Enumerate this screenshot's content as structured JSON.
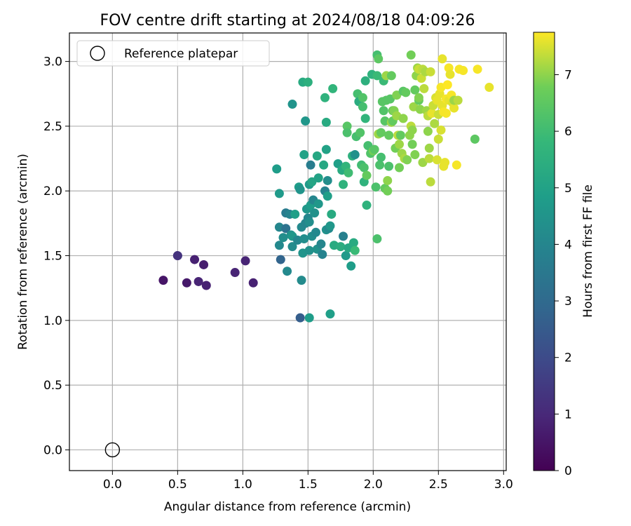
{
  "chart_data": {
    "type": "scatter",
    "title": "FOV centre drift starting at 2024/08/18 04:09:26",
    "xlabel": "Angular distance from reference (arcmin)",
    "ylabel": "Rotation from reference (arcmin)",
    "xlim": [
      -0.33,
      3.02
    ],
    "ylim": [
      -0.16,
      3.22
    ],
    "xticks": [
      "0.0",
      "0.5",
      "1.0",
      "1.5",
      "2.0",
      "2.5",
      "3.0"
    ],
    "yticks": [
      "0.0",
      "0.5",
      "1.0",
      "1.5",
      "2.0",
      "2.5",
      "3.0"
    ],
    "grid": true,
    "legend_position": "top-left",
    "legend": [
      {
        "label": "Reference platepar",
        "marker": "open-circle"
      }
    ],
    "reference_point": [
      0.0,
      0.0
    ],
    "colormap": "viridis",
    "colorbar": {
      "label": "Hours from first FF file",
      "range": [
        0,
        7.75
      ],
      "ticks": [
        "0",
        "1",
        "2",
        "3",
        "4",
        "5",
        "6",
        "7"
      ]
    },
    "points": [
      [
        0.39,
        1.31,
        0.5
      ],
      [
        0.5,
        1.5,
        1.6
      ],
      [
        0.5,
        1.5,
        1.3
      ],
      [
        0.57,
        1.29,
        0.6
      ],
      [
        0.63,
        1.47,
        0.8
      ],
      [
        0.66,
        1.3,
        0.9
      ],
      [
        0.7,
        1.43,
        0.7
      ],
      [
        0.72,
        1.27,
        0.8
      ],
      [
        0.94,
        1.37,
        0.9
      ],
      [
        1.02,
        1.46,
        0.9
      ],
      [
        1.08,
        1.29,
        0.8
      ],
      [
        1.44,
        1.02,
        2.6
      ],
      [
        1.51,
        1.02,
        4.8
      ],
      [
        1.67,
        1.05,
        4.9
      ],
      [
        1.45,
        1.31,
        4.2
      ],
      [
        1.34,
        1.38,
        4.1
      ],
      [
        1.29,
        1.47,
        2.8
      ],
      [
        1.28,
        1.58,
        4.1
      ],
      [
        1.28,
        1.72,
        4.0
      ],
      [
        1.31,
        1.64,
        4.3
      ],
      [
        1.33,
        1.71,
        3.3
      ],
      [
        1.33,
        1.83,
        3.6
      ],
      [
        1.36,
        1.82,
        3.9
      ],
      [
        1.37,
        1.66,
        4.4
      ],
      [
        1.38,
        1.65,
        4.6
      ],
      [
        1.38,
        1.57,
        4.2
      ],
      [
        1.4,
        1.82,
        4.9
      ],
      [
        1.42,
        1.62,
        4.0
      ],
      [
        1.45,
        1.72,
        4.1
      ],
      [
        1.46,
        1.52,
        4.5
      ],
      [
        1.47,
        1.63,
        4.3
      ],
      [
        1.48,
        1.75,
        4.0
      ],
      [
        1.49,
        1.86,
        4.6
      ],
      [
        1.5,
        1.79,
        4.0
      ],
      [
        1.51,
        1.76,
        4.3
      ],
      [
        1.51,
        1.54,
        4.4
      ],
      [
        1.52,
        1.89,
        4.8
      ],
      [
        1.53,
        1.65,
        4.3
      ],
      [
        1.54,
        1.93,
        4.0
      ],
      [
        1.55,
        1.83,
        4.4
      ],
      [
        1.56,
        1.68,
        4.1
      ],
      [
        1.57,
        1.55,
        4.4
      ],
      [
        1.58,
        1.9,
        4.6
      ],
      [
        1.6,
        1.59,
        4.0
      ],
      [
        1.61,
        1.51,
        3.9
      ],
      [
        1.63,
        2.0,
        3.9
      ],
      [
        1.64,
        1.7,
        4.4
      ],
      [
        1.65,
        1.96,
        4.9
      ],
      [
        1.66,
        1.71,
        4.1
      ],
      [
        1.67,
        1.73,
        4.6
      ],
      [
        1.68,
        1.82,
        5.3
      ],
      [
        1.7,
        1.58,
        5.3
      ],
      [
        1.75,
        1.57,
        5.4
      ],
      [
        1.77,
        1.65,
        3.8
      ],
      [
        1.79,
        1.5,
        4.7
      ],
      [
        1.81,
        1.56,
        5.2
      ],
      [
        1.83,
        1.42,
        4.8
      ],
      [
        1.85,
        1.6,
        5.3
      ],
      [
        1.86,
        1.54,
        5.9
      ],
      [
        1.26,
        2.17,
        4.8
      ],
      [
        1.28,
        1.98,
        4.7
      ],
      [
        1.38,
        2.67,
        4.5
      ],
      [
        1.43,
        2.03,
        4.8
      ],
      [
        1.44,
        2.01,
        4.5
      ],
      [
        1.46,
        2.84,
        5.3
      ],
      [
        1.47,
        2.28,
        5.0
      ],
      [
        1.48,
        2.54,
        4.6
      ],
      [
        1.5,
        2.84,
        5.5
      ],
      [
        1.51,
        2.05,
        4.7
      ],
      [
        1.52,
        2.2,
        3.7
      ],
      [
        1.53,
        2.07,
        5.1
      ],
      [
        1.57,
        2.27,
        5.2
      ],
      [
        1.58,
        2.1,
        5.0
      ],
      [
        1.62,
        2.2,
        5.2
      ],
      [
        1.63,
        2.72,
        5.6
      ],
      [
        1.64,
        2.32,
        5.0
      ],
      [
        1.64,
        2.53,
        5.3
      ],
      [
        1.65,
        2.08,
        4.3
      ],
      [
        1.69,
        2.79,
        5.7
      ],
      [
        1.73,
        2.21,
        4.9
      ],
      [
        1.76,
        2.16,
        5.3
      ],
      [
        1.77,
        2.05,
        5.6
      ],
      [
        1.79,
        2.19,
        5.7
      ],
      [
        1.8,
        2.5,
        6.4
      ],
      [
        1.8,
        2.45,
        6.2
      ],
      [
        1.81,
        2.14,
        6.0
      ],
      [
        1.84,
        2.27,
        5.5
      ],
      [
        1.86,
        2.28,
        4.4
      ],
      [
        1.87,
        2.42,
        6.1
      ],
      [
        1.88,
        2.75,
        6.1
      ],
      [
        1.89,
        2.69,
        5.4
      ],
      [
        1.9,
        2.45,
        6.3
      ],
      [
        1.91,
        2.2,
        6.0
      ],
      [
        1.92,
        2.72,
        6.3
      ],
      [
        1.92,
        2.65,
        6.1
      ],
      [
        1.93,
        2.18,
        6.2
      ],
      [
        1.93,
        2.07,
        5.6
      ],
      [
        1.94,
        2.85,
        5.5
      ],
      [
        1.94,
        2.56,
        5.7
      ],
      [
        1.95,
        2.12,
        6.6
      ],
      [
        1.95,
        1.89,
        5.6
      ],
      [
        1.96,
        2.35,
        6.1
      ],
      [
        1.98,
        2.29,
        6.3
      ],
      [
        1.99,
        2.9,
        5.6
      ],
      [
        2.0,
        2.31,
        6.8
      ],
      [
        2.01,
        2.32,
        6.4
      ],
      [
        2.02,
        2.03,
        6.2
      ],
      [
        2.03,
        3.05,
        6.1
      ],
      [
        2.03,
        2.89,
        5.9
      ],
      [
        2.03,
        1.63,
        6.2
      ],
      [
        2.04,
        2.44,
        7.1
      ],
      [
        2.04,
        3.02,
        6.5
      ],
      [
        2.05,
        2.2,
        6.2
      ],
      [
        2.06,
        2.26,
        6.1
      ],
      [
        2.06,
        2.45,
        6.6
      ],
      [
        2.07,
        2.69,
        6.4
      ],
      [
        2.08,
        2.85,
        5.9
      ],
      [
        2.08,
        2.62,
        6.3
      ],
      [
        2.09,
        2.02,
        6.6
      ],
      [
        2.09,
        2.54,
        6.4
      ],
      [
        2.1,
        2.89,
        7.1
      ],
      [
        2.1,
        2.7,
        6.4
      ],
      [
        2.11,
        2.08,
        7.0
      ],
      [
        2.11,
        2.0,
        6.8
      ],
      [
        2.12,
        2.19,
        6.2
      ],
      [
        2.12,
        2.43,
        6.6
      ],
      [
        2.13,
        2.71,
        6.4
      ],
      [
        2.14,
        2.89,
        6.6
      ],
      [
        2.14,
        2.53,
        7.1
      ],
      [
        2.15,
        2.54,
        6.6
      ],
      [
        2.15,
        2.62,
        6.6
      ],
      [
        2.16,
        2.62,
        6.9
      ],
      [
        2.17,
        2.33,
        6.8
      ],
      [
        2.18,
        2.74,
        6.9
      ],
      [
        2.18,
        2.58,
        7.1
      ],
      [
        2.19,
        2.43,
        7.3
      ],
      [
        2.2,
        2.18,
        6.8
      ],
      [
        2.2,
        2.36,
        7.1
      ],
      [
        2.21,
        2.43,
        6.6
      ],
      [
        2.22,
        2.29,
        7.1
      ],
      [
        2.23,
        2.77,
        6.4
      ],
      [
        2.23,
        2.56,
        7.0
      ],
      [
        2.24,
        2.25,
        7.2
      ],
      [
        2.25,
        2.76,
        6.6
      ],
      [
        2.26,
        2.24,
        6.9
      ],
      [
        2.28,
        2.43,
        7.0
      ],
      [
        2.29,
        3.05,
        6.8
      ],
      [
        2.29,
        2.5,
        7.3
      ],
      [
        2.3,
        2.36,
        6.8
      ],
      [
        2.3,
        2.47,
        7.0
      ],
      [
        2.31,
        2.65,
        7.1
      ],
      [
        2.32,
        2.78,
        6.6
      ],
      [
        2.32,
        2.28,
        6.9
      ],
      [
        2.33,
        2.89,
        7.0
      ],
      [
        2.34,
        2.95,
        7.1
      ],
      [
        2.35,
        2.7,
        6.6
      ],
      [
        2.35,
        2.94,
        7.4
      ],
      [
        2.35,
        2.72,
        6.9
      ],
      [
        2.36,
        2.63,
        7.0
      ],
      [
        2.37,
        2.87,
        7.4
      ],
      [
        2.38,
        2.22,
        7.1
      ],
      [
        2.38,
        2.94,
        7.3
      ],
      [
        2.39,
        2.79,
        7.3
      ],
      [
        2.4,
        2.92,
        7.2
      ],
      [
        2.41,
        2.62,
        7.1
      ],
      [
        2.42,
        2.46,
        7.0
      ],
      [
        2.42,
        2.58,
        7.3
      ],
      [
        2.43,
        2.25,
        7.3
      ],
      [
        2.43,
        2.33,
        7.1
      ],
      [
        2.44,
        2.92,
        7.4
      ],
      [
        2.44,
        2.07,
        7.3
      ],
      [
        2.45,
        2.6,
        7.6
      ],
      [
        2.46,
        2.66,
        7.4
      ],
      [
        2.47,
        2.52,
        7.2
      ],
      [
        2.48,
        2.72,
        7.5
      ],
      [
        2.49,
        2.24,
        7.5
      ],
      [
        2.49,
        2.7,
        7.6
      ],
      [
        2.5,
        2.4,
        7.4
      ],
      [
        2.5,
        2.59,
        7.4
      ],
      [
        2.51,
        2.75,
        7.6
      ],
      [
        2.52,
        2.47,
        7.5
      ],
      [
        2.52,
        2.8,
        7.7
      ],
      [
        2.53,
        3.02,
        7.6
      ],
      [
        2.53,
        2.66,
        7.6
      ],
      [
        2.54,
        2.19,
        7.6
      ],
      [
        2.54,
        2.61,
        7.7
      ],
      [
        2.55,
        2.22,
        7.6
      ],
      [
        2.56,
        2.71,
        7.7
      ],
      [
        2.56,
        2.6,
        7.7
      ],
      [
        2.57,
        2.82,
        7.8
      ],
      [
        2.58,
        2.7,
        7.6
      ],
      [
        2.58,
        2.95,
        7.7
      ],
      [
        2.59,
        2.9,
        7.6
      ],
      [
        2.6,
        2.74,
        7.7
      ],
      [
        2.61,
        2.68,
        7.5
      ],
      [
        2.62,
        2.64,
        7.6
      ],
      [
        2.62,
        2.7,
        7.1
      ],
      [
        2.64,
        2.2,
        7.7
      ],
      [
        2.65,
        2.7,
        7.3
      ],
      [
        2.66,
        2.94,
        7.7
      ],
      [
        2.69,
        2.93,
        7.7
      ],
      [
        2.78,
        2.4,
        6.5
      ],
      [
        2.8,
        2.94,
        7.7
      ],
      [
        2.89,
        2.8,
        7.6
      ]
    ]
  }
}
